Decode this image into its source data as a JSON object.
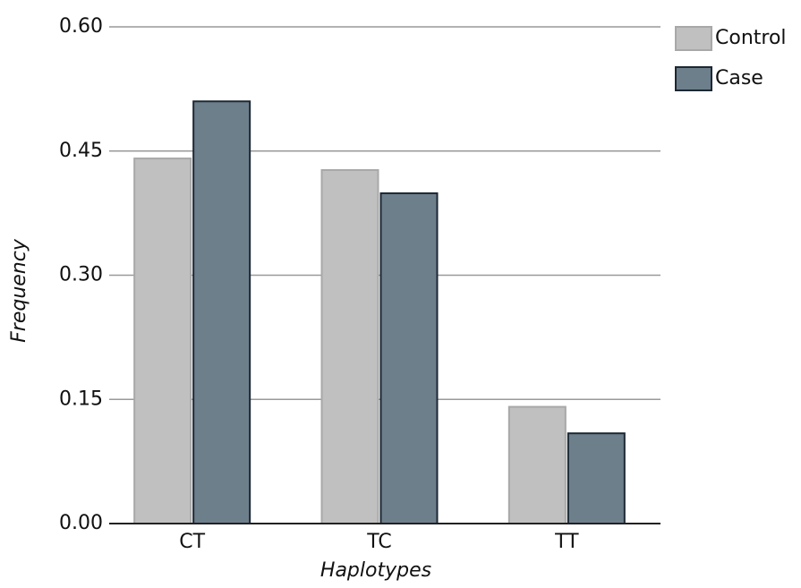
{
  "chart_data": {
    "type": "bar",
    "categories": [
      "CT",
      "TC",
      "TT"
    ],
    "series": [
      {
        "name": "Control",
        "color": "#c0c0c0",
        "values": [
          0.441,
          0.427,
          0.141
        ]
      },
      {
        "name": "Case",
        "color": "#6e7f8c",
        "values": [
          0.51,
          0.399,
          0.109
        ]
      }
    ],
    "x_label": "Haplotypes",
    "y_label": "Frequency",
    "ylim": [
      0,
      0.6
    ],
    "yticks": [
      {
        "value": 0,
        "label": "0.00"
      },
      {
        "value": 0.15,
        "label": "0.15"
      },
      {
        "value": 0.3,
        "label": "0.30"
      },
      {
        "value": 0.45,
        "label": "0.45"
      },
      {
        "value": 0.6,
        "label": "0.60"
      }
    ],
    "grid": true,
    "legend": "top-right"
  }
}
